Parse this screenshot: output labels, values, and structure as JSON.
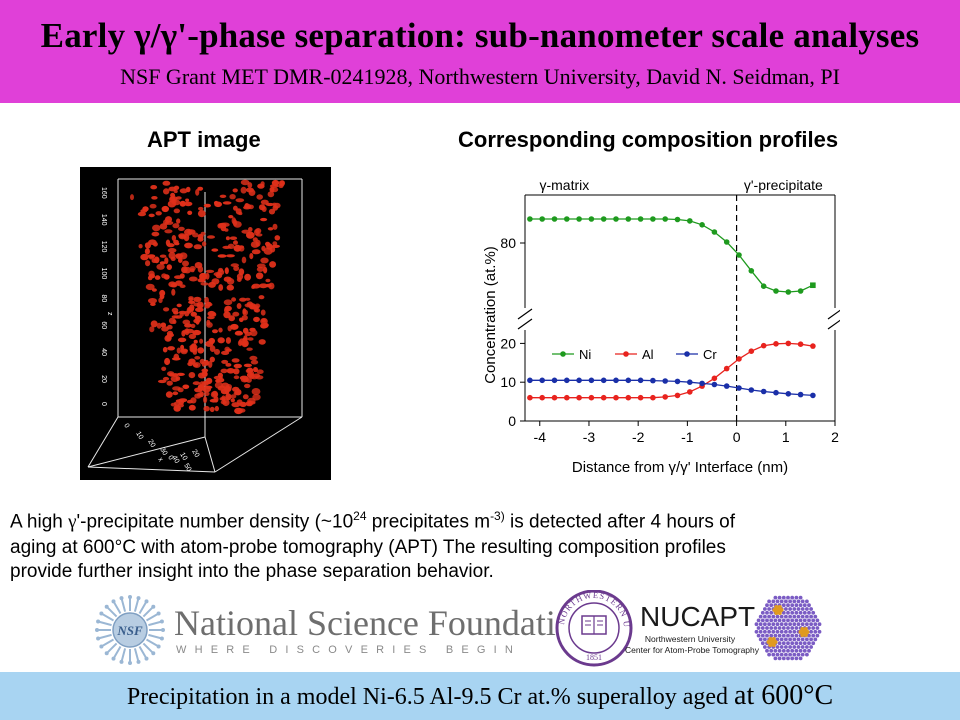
{
  "header": {
    "title": "Early γ/γ'-phase separation: sub-nanometer scale analyses",
    "subtitle": "NSF Grant MET DMR-0241928, Northwestern University, David N. Seidman, PI"
  },
  "left_heading": "APT image",
  "right_heading": "Corresponding composition profiles",
  "apt_image": {
    "axis_label": "z",
    "z_ticks": [
      "160",
      "140",
      "120",
      "100",
      "80",
      "60",
      "40",
      "20",
      "0"
    ],
    "x_ticks": [
      "0",
      "10",
      "20",
      "30",
      "40",
      "50"
    ],
    "y_label": "x",
    "y_ticks": [
      "0",
      "10",
      "20"
    ]
  },
  "chart_data": {
    "type": "line",
    "xlabel": "Distance from γ/γ' Interface (nm)",
    "ylabel": "Concentration (at.%)",
    "xlim": [
      -4.3,
      2
    ],
    "x_ticks": [
      "-4",
      "-3",
      "-2",
      "-1",
      "0",
      "1",
      "2"
    ],
    "y_ticks_upper": [
      "80"
    ],
    "y_ticks_lower": [
      "0",
      "10",
      "20"
    ],
    "region_labels": [
      "γ-matrix",
      "γ'-precipitate"
    ],
    "interface_x": 0,
    "axis_break": true,
    "legend_placement": "upper-left of lower panel",
    "x": [
      -4.2,
      -3.95,
      -3.7,
      -3.45,
      -3.2,
      -2.95,
      -2.7,
      -2.45,
      -2.2,
      -1.95,
      -1.7,
      -1.45,
      -1.2,
      -0.95,
      -0.7,
      -0.45,
      -0.2,
      0.05,
      0.3,
      0.55,
      0.8,
      1.05,
      1.3,
      1.55
    ],
    "series": [
      {
        "name": "Ni",
        "color": "#1e9a1e",
        "marker": "circle",
        "values": [
          85,
          85,
          85,
          85,
          85,
          85,
          85,
          85,
          85,
          85,
          85,
          85,
          84.9,
          84.6,
          83.8,
          82.3,
          80.2,
          77.5,
          74.2,
          71.0,
          70.0,
          69.8,
          70.0,
          71.2
        ]
      },
      {
        "name": "Al",
        "color": "#e8231e",
        "marker": "circle",
        "values": [
          6,
          6,
          6,
          6,
          6,
          6,
          6,
          6,
          6,
          6,
          6,
          6.2,
          6.6,
          7.5,
          9.0,
          11.0,
          13.5,
          16.0,
          18.0,
          19.4,
          19.9,
          20.0,
          19.8,
          19.3
        ]
      },
      {
        "name": "Cr",
        "color": "#1a2fa8",
        "marker": "circle",
        "values": [
          10.5,
          10.5,
          10.5,
          10.5,
          10.5,
          10.5,
          10.5,
          10.5,
          10.5,
          10.5,
          10.4,
          10.3,
          10.2,
          10.0,
          9.7,
          9.4,
          9.0,
          8.5,
          8.0,
          7.6,
          7.3,
          7.0,
          6.8,
          6.6
        ]
      }
    ]
  },
  "description": {
    "p1_a": "A high ",
    "p1_gamma": "γ",
    "p1_b": "'-precipitate number density (~10",
    "p1_exp1": "24",
    "p1_c": " precipitates m",
    "p1_exp2": "-3)",
    "p1_d": " is detected after  4 hours of",
    "p2": "aging at 600°C with atom-probe tomography (APT)  The resulting composition profiles",
    "p3": "provide further insight into the phase separation behavior."
  },
  "logos": {
    "nsf_emblem": "NSF",
    "nsf_name": "National Science Foundation",
    "nsf_tagline": "WHERE DISCOVERIES BEGIN",
    "nu_seal_text": "NORTHWESTERN UNIVERSITY",
    "nu_seal_year": "1851",
    "nucapt_title": "NUCAPT",
    "nucapt_line1": "Northwestern University",
    "nucapt_line2": "Center for Atom-Probe Tomography"
  },
  "footer": {
    "text_a": "Precipitation in a model Ni-6.5 Al-9.5 Cr at.% superalloy aged ",
    "text_b": "at 600°C"
  },
  "colors": {
    "header_bg": "#e040d8",
    "footer_bg": "#a8d4f2",
    "precipitate": "#e0301a"
  }
}
